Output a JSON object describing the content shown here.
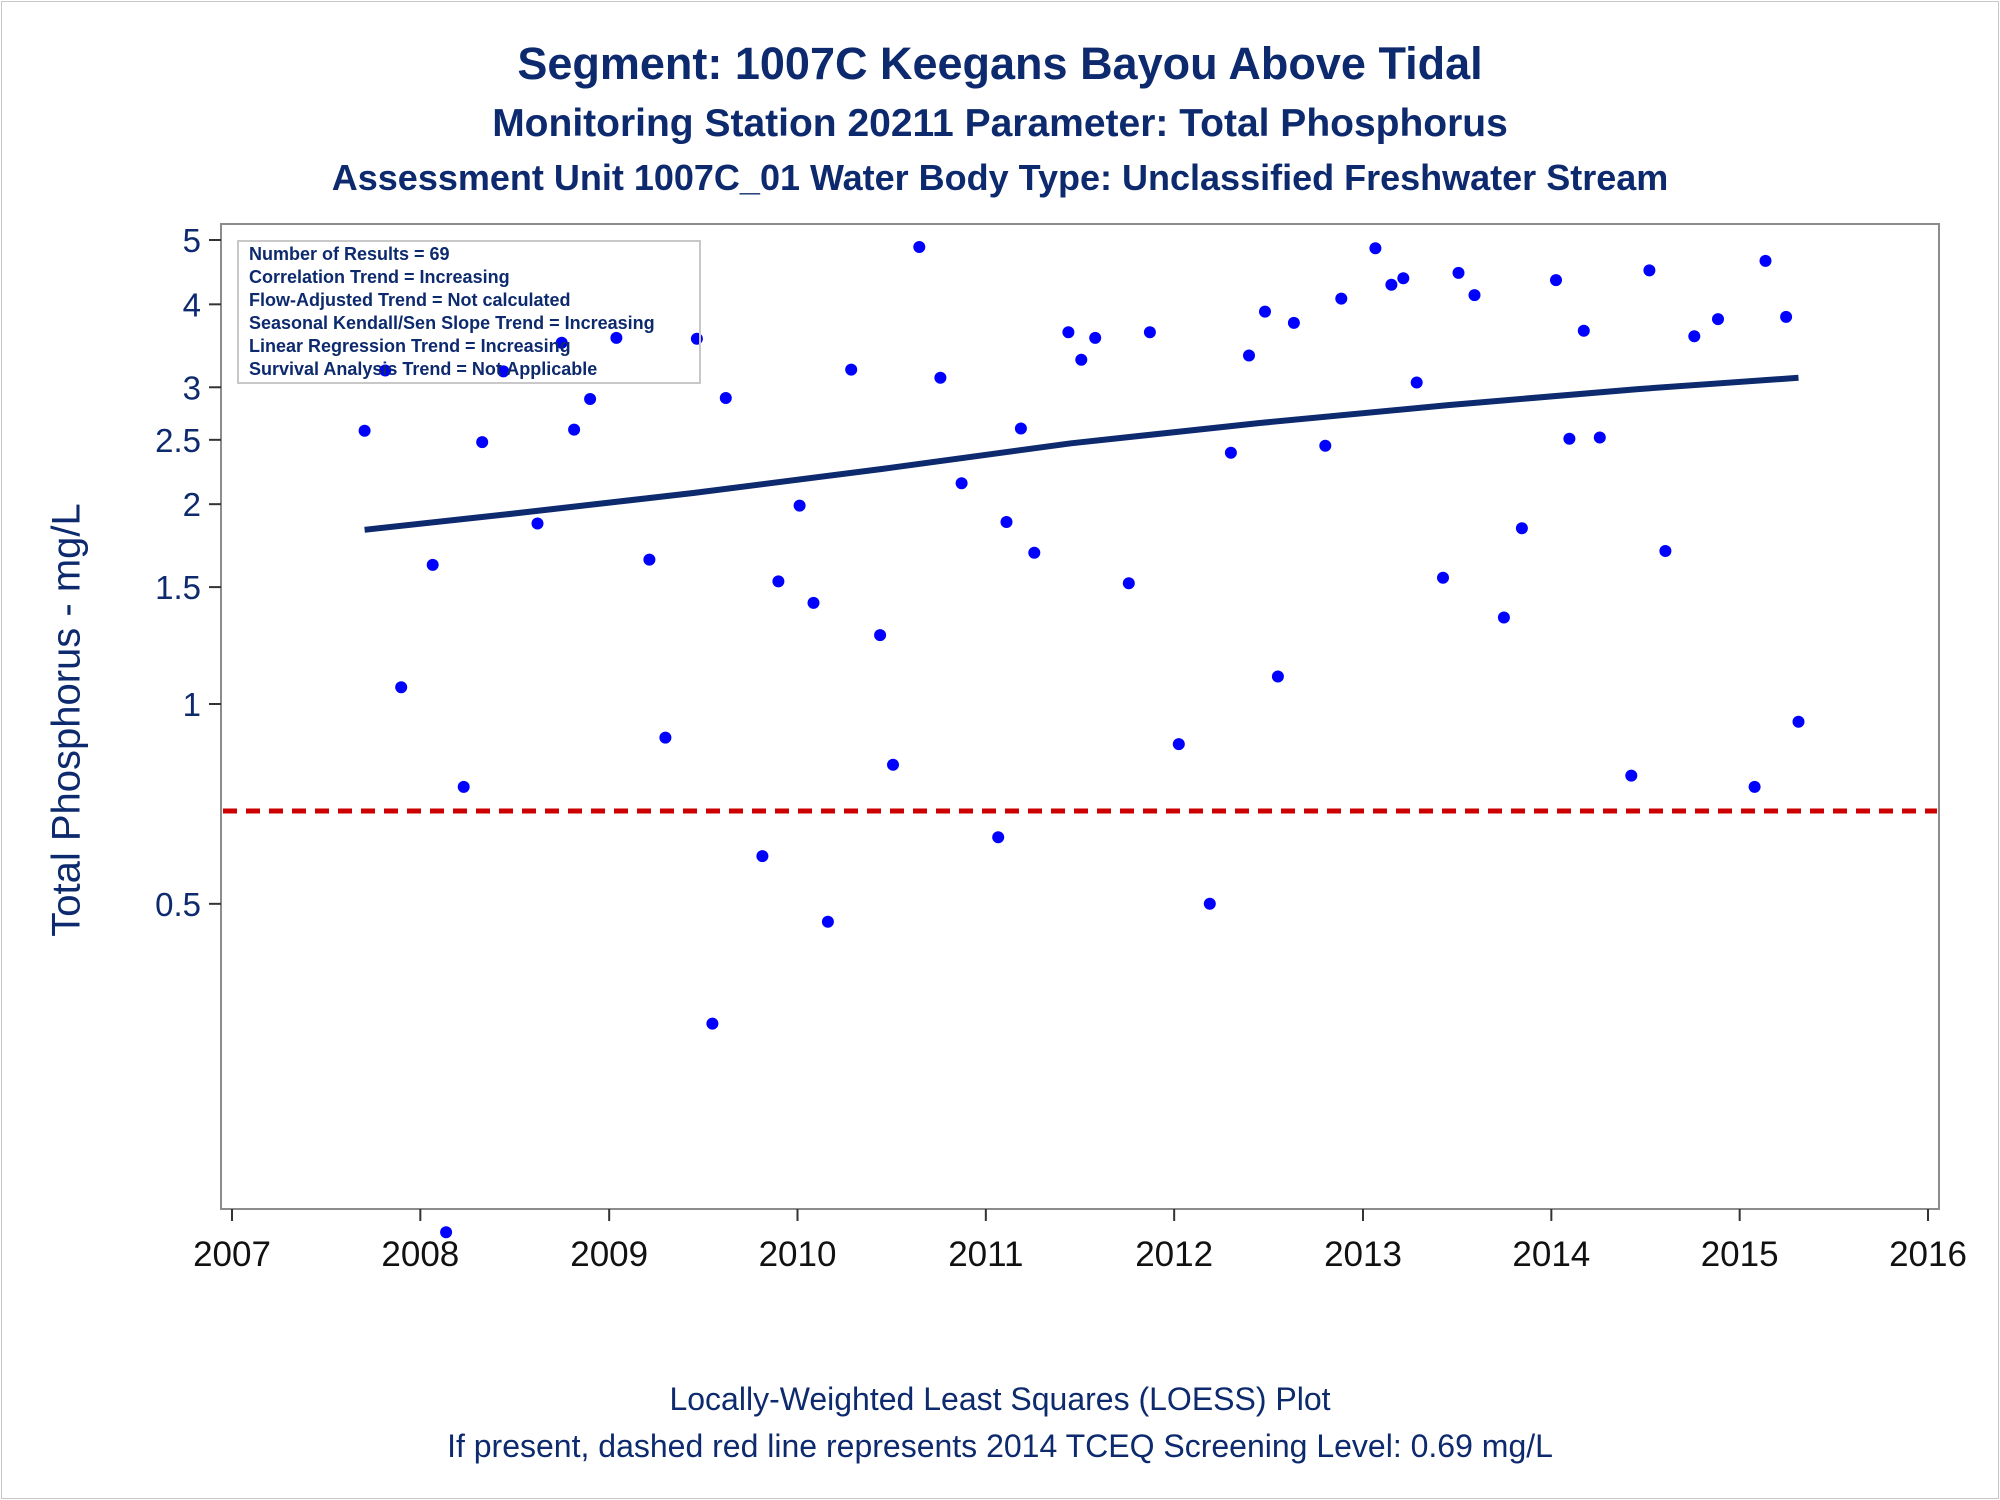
{
  "chart_data": {
    "type": "scatter",
    "title": "Segment: 1007C  Keegans Bayou Above Tidal",
    "subtitle1": "Monitoring Station 20211 Parameter: Total Phosphorus",
    "subtitle2": "Assessment Unit 1007C_01   Water Body Type: Unclassified Freshwater Stream",
    "ylabel": "Total Phosphorus - mg/L",
    "footer1": "Locally-Weighted Least Squares (LOESS) Plot",
    "footer2": "If present, dashed red line represents 2014 TCEQ Screening Level: 0.69 mg/L",
    "y_scale": "log",
    "x_ticks": [
      "2007",
      "2008",
      "2009",
      "2010",
      "2011",
      "2012",
      "2013",
      "2014",
      "2015",
      "2016"
    ],
    "y_ticks": [
      "0.5",
      "1",
      "1.5",
      "2",
      "2.5",
      "3",
      "4",
      "5"
    ],
    "xlim": [
      "2007-01-01",
      "2016-01-01"
    ],
    "ylim": [
      0.16,
      5.3
    ],
    "grid": false,
    "legend_box": {
      "placement": "top-left",
      "lines": [
        "Number of Results = 69",
        "Correlation Trend = Increasing",
        "Flow-Adjusted Trend = Not calculated",
        "Seasonal Kendall/Sen Slope Trend = Increasing",
        "Linear Regression Trend = Increasing",
        "Survival Analysis Trend = Not Applicable"
      ]
    },
    "screening_level": {
      "value": 0.69,
      "color": "#cc0000",
      "style": "dashed"
    },
    "trend_line": {
      "color": "#0d2a6e",
      "points": [
        {
          "x": "2007-09-15",
          "y": 1.83
        },
        {
          "x": "2008-06-15",
          "y": 1.93
        },
        {
          "x": "2009-06-15",
          "y": 2.08
        },
        {
          "x": "2010-06-15",
          "y": 2.26
        },
        {
          "x": "2011-06-15",
          "y": 2.47
        },
        {
          "x": "2012-06-15",
          "y": 2.65
        },
        {
          "x": "2013-06-15",
          "y": 2.82
        },
        {
          "x": "2014-06-15",
          "y": 2.98
        },
        {
          "x": "2015-04-25",
          "y": 3.1
        }
      ]
    },
    "marker_color": "#0000ff",
    "points": [
      {
        "x": "2007-09-15",
        "y": 2.58
      },
      {
        "x": "2007-10-25",
        "y": 3.18
      },
      {
        "x": "2007-11-25",
        "y": 1.06
      },
      {
        "x": "2008-01-25",
        "y": 1.62
      },
      {
        "x": "2008-02-20",
        "y": 0.16
      },
      {
        "x": "2008-03-25",
        "y": 0.75
      },
      {
        "x": "2008-04-30",
        "y": 2.48
      },
      {
        "x": "2008-06-10",
        "y": 3.17
      },
      {
        "x": "2008-08-15",
        "y": 1.87
      },
      {
        "x": "2008-10-01",
        "y": 3.5
      },
      {
        "x": "2008-10-25",
        "y": 2.59
      },
      {
        "x": "2008-11-25",
        "y": 2.88
      },
      {
        "x": "2009-01-15",
        "y": 3.56
      },
      {
        "x": "2009-03-20",
        "y": 1.65
      },
      {
        "x": "2009-04-20",
        "y": 0.89
      },
      {
        "x": "2009-06-20",
        "y": 3.55
      },
      {
        "x": "2009-07-20",
        "y": 0.33
      },
      {
        "x": "2009-08-15",
        "y": 2.89
      },
      {
        "x": "2009-10-25",
        "y": 0.59
      },
      {
        "x": "2009-11-25",
        "y": 1.53
      },
      {
        "x": "2010-01-05",
        "y": 1.99
      },
      {
        "x": "2010-02-01",
        "y": 1.42
      },
      {
        "x": "2010-03-01",
        "y": 0.47
      },
      {
        "x": "2010-04-15",
        "y": 3.19
      },
      {
        "x": "2010-06-10",
        "y": 1.27
      },
      {
        "x": "2010-07-05",
        "y": 0.81
      },
      {
        "x": "2010-08-25",
        "y": 4.88
      },
      {
        "x": "2010-10-05",
        "y": 3.1
      },
      {
        "x": "2010-11-15",
        "y": 2.15
      },
      {
        "x": "2011-01-25",
        "y": 0.63
      },
      {
        "x": "2011-02-10",
        "y": 1.88
      },
      {
        "x": "2011-03-10",
        "y": 2.6
      },
      {
        "x": "2011-04-05",
        "y": 1.69
      },
      {
        "x": "2011-06-10",
        "y": 3.63
      },
      {
        "x": "2011-07-05",
        "y": 3.3
      },
      {
        "x": "2011-08-01",
        "y": 3.56
      },
      {
        "x": "2011-10-05",
        "y": 1.52
      },
      {
        "x": "2011-11-15",
        "y": 3.63
      },
      {
        "x": "2012-01-10",
        "y": 0.87
      },
      {
        "x": "2012-03-10",
        "y": 0.5
      },
      {
        "x": "2012-04-20",
        "y": 2.39
      },
      {
        "x": "2012-05-25",
        "y": 3.35
      },
      {
        "x": "2012-06-25",
        "y": 3.9
      },
      {
        "x": "2012-07-20",
        "y": 1.1
      },
      {
        "x": "2012-08-20",
        "y": 3.75
      },
      {
        "x": "2012-10-20",
        "y": 2.45
      },
      {
        "x": "2012-11-20",
        "y": 4.08
      },
      {
        "x": "2013-01-25",
        "y": 4.86
      },
      {
        "x": "2013-02-25",
        "y": 4.28
      },
      {
        "x": "2013-03-20",
        "y": 4.38
      },
      {
        "x": "2013-04-15",
        "y": 3.05
      },
      {
        "x": "2013-06-05",
        "y": 1.55
      },
      {
        "x": "2013-07-05",
        "y": 4.46
      },
      {
        "x": "2013-08-05",
        "y": 4.13
      },
      {
        "x": "2013-10-01",
        "y": 1.35
      },
      {
        "x": "2013-11-05",
        "y": 1.84
      },
      {
        "x": "2014-01-10",
        "y": 4.35
      },
      {
        "x": "2014-02-05",
        "y": 2.51
      },
      {
        "x": "2014-03-05",
        "y": 3.65
      },
      {
        "x": "2014-04-05",
        "y": 2.52
      },
      {
        "x": "2014-06-05",
        "y": 0.78
      },
      {
        "x": "2014-07-10",
        "y": 4.5
      },
      {
        "x": "2014-08-10",
        "y": 1.7
      },
      {
        "x": "2014-10-05",
        "y": 3.58
      },
      {
        "x": "2014-11-20",
        "y": 3.8
      },
      {
        "x": "2015-01-30",
        "y": 0.75
      },
      {
        "x": "2015-02-20",
        "y": 4.65
      },
      {
        "x": "2015-04-01",
        "y": 3.83
      },
      {
        "x": "2015-04-25",
        "y": 0.94
      }
    ]
  }
}
